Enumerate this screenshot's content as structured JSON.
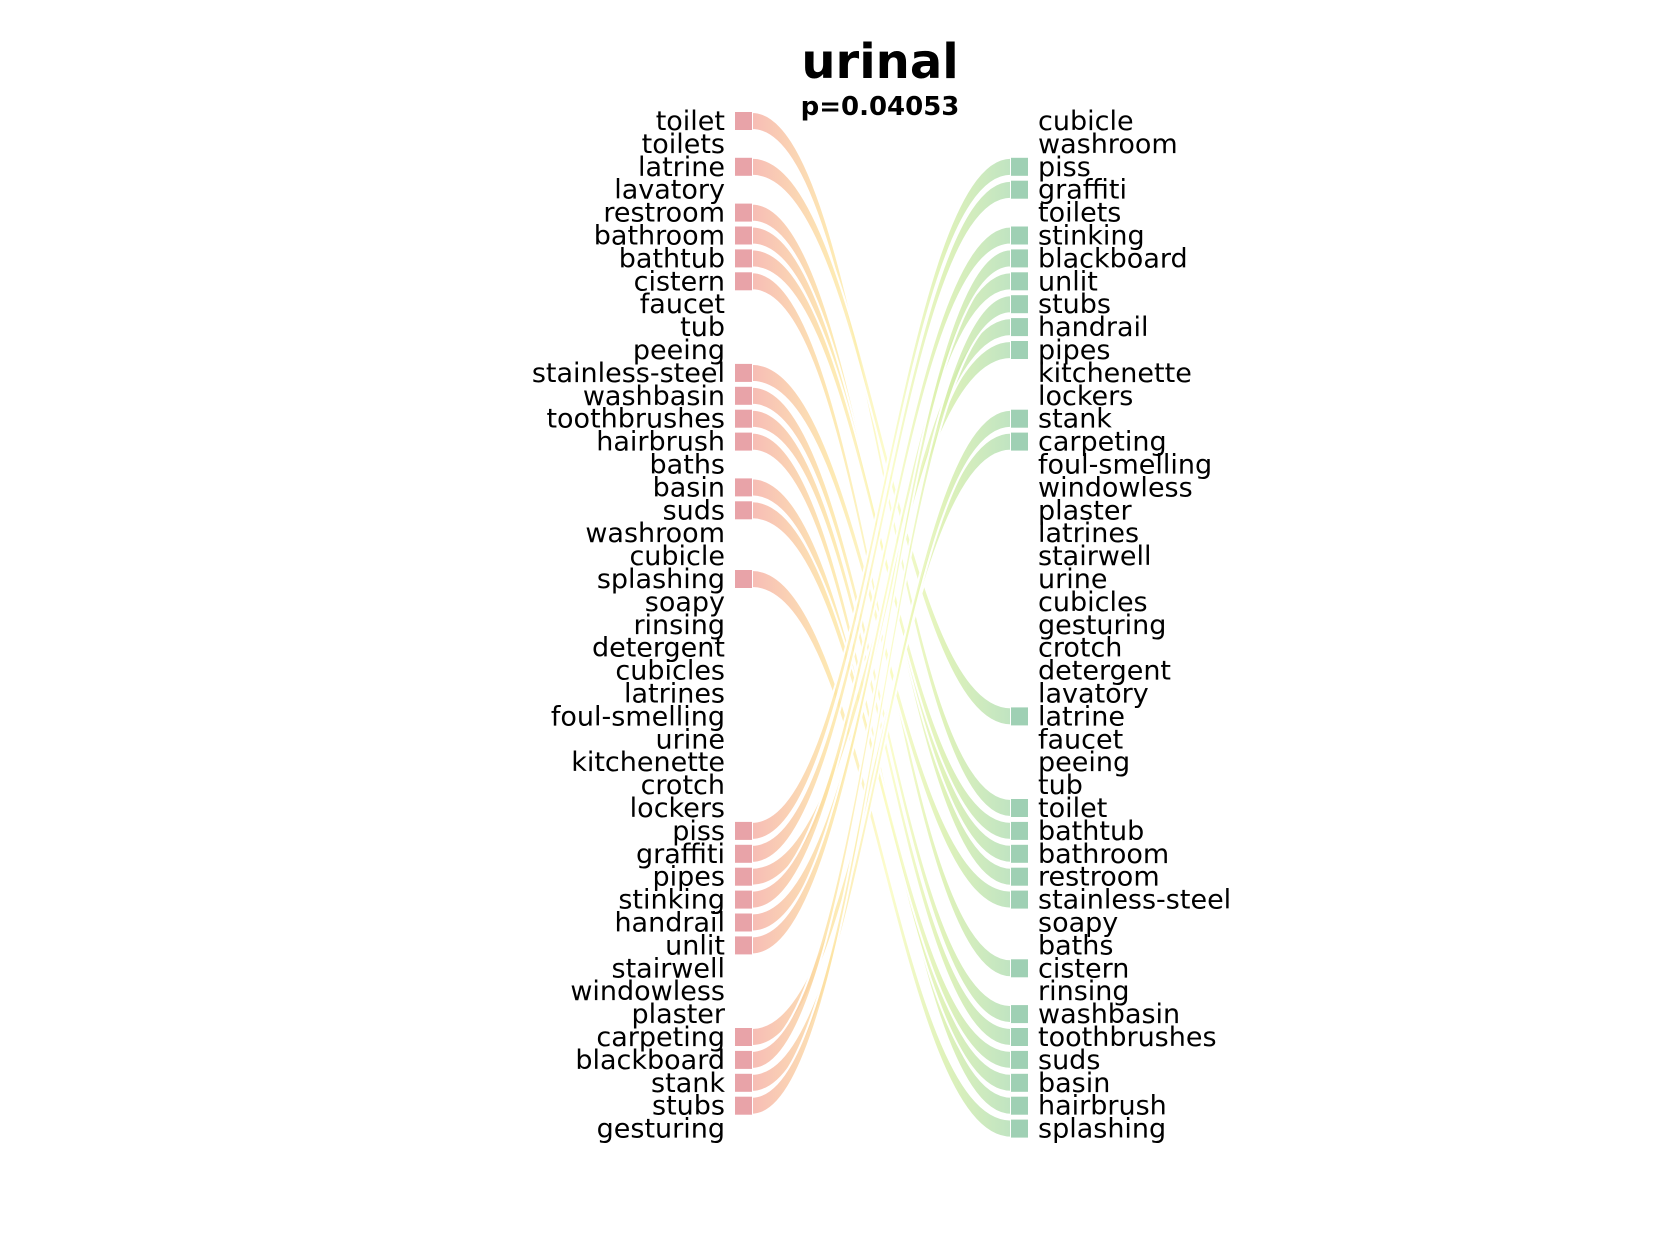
{
  "chart_data": {
    "type": "bump",
    "title": "urinal",
    "subtitle": "p=0.04053",
    "left_list": [
      "toilet",
      "toilets",
      "latrine",
      "lavatory",
      "restroom",
      "bathroom",
      "bathtub",
      "cistern",
      "faucet",
      "tub",
      "peeing",
      "stainless-steel",
      "washbasin",
      "toothbrushes",
      "hairbrush",
      "baths",
      "basin",
      "suds",
      "washroom",
      "cubicle",
      "splashing",
      "soapy",
      "rinsing",
      "detergent",
      "cubicles",
      "latrines",
      "foul-smelling",
      "urine",
      "kitchenette",
      "crotch",
      "lockers",
      "piss",
      "graffiti",
      "pipes",
      "stinking",
      "handrail",
      "unlit",
      "stairwell",
      "windowless",
      "plaster",
      "carpeting",
      "blackboard",
      "stank",
      "stubs",
      "gesturing"
    ],
    "right_list": [
      "cubicle",
      "washroom",
      "piss",
      "graffiti",
      "toilets",
      "stinking",
      "blackboard",
      "unlit",
      "stubs",
      "handrail",
      "pipes",
      "kitchenette",
      "lockers",
      "stank",
      "carpeting",
      "foul-smelling",
      "windowless",
      "plaster",
      "latrines",
      "stairwell",
      "urine",
      "cubicles",
      "gesturing",
      "crotch",
      "detergent",
      "lavatory",
      "latrine",
      "faucet",
      "peeing",
      "tub",
      "toilet",
      "bathtub",
      "bathroom",
      "restroom",
      "stainless-steel",
      "soapy",
      "baths",
      "cistern",
      "rinsing",
      "washbasin",
      "toothbrushes",
      "suds",
      "basin",
      "hairbrush",
      "splashing"
    ],
    "connections": [
      {
        "word": "toilet",
        "from_rank": 1,
        "to_rank": 31
      },
      {
        "word": "latrine",
        "from_rank": 3,
        "to_rank": 27
      },
      {
        "word": "restroom",
        "from_rank": 5,
        "to_rank": 34
      },
      {
        "word": "bathroom",
        "from_rank": 6,
        "to_rank": 33
      },
      {
        "word": "bathtub",
        "from_rank": 7,
        "to_rank": 32
      },
      {
        "word": "cistern",
        "from_rank": 8,
        "to_rank": 38
      },
      {
        "word": "stainless-steel",
        "from_rank": 12,
        "to_rank": 35
      },
      {
        "word": "washbasin",
        "from_rank": 13,
        "to_rank": 40
      },
      {
        "word": "toothbrushes",
        "from_rank": 14,
        "to_rank": 41
      },
      {
        "word": "hairbrush",
        "from_rank": 15,
        "to_rank": 44
      },
      {
        "word": "basin",
        "from_rank": 17,
        "to_rank": 43
      },
      {
        "word": "suds",
        "from_rank": 18,
        "to_rank": 42
      },
      {
        "word": "splashing",
        "from_rank": 21,
        "to_rank": 45
      },
      {
        "word": "piss",
        "from_rank": 32,
        "to_rank": 3
      },
      {
        "word": "graffiti",
        "from_rank": 33,
        "to_rank": 4
      },
      {
        "word": "pipes",
        "from_rank": 34,
        "to_rank": 11
      },
      {
        "word": "stinking",
        "from_rank": 35,
        "to_rank": 6
      },
      {
        "word": "handrail",
        "from_rank": 36,
        "to_rank": 10
      },
      {
        "word": "unlit",
        "from_rank": 37,
        "to_rank": 8
      },
      {
        "word": "carpeting",
        "from_rank": 41,
        "to_rank": 15
      },
      {
        "word": "blackboard",
        "from_rank": 42,
        "to_rank": 7
      },
      {
        "word": "stank",
        "from_rank": 43,
        "to_rank": 14
      },
      {
        "word": "stubs",
        "from_rank": 44,
        "to_rank": 9
      }
    ],
    "colors": {
      "left_marker": "#e8a3a8",
      "right_marker": "#9fd0b4",
      "gradient_stops": [
        "#f4a7a3",
        "#fde3a0",
        "#fbfcc0",
        "#d7efa9",
        "#a5d8b5"
      ]
    }
  }
}
